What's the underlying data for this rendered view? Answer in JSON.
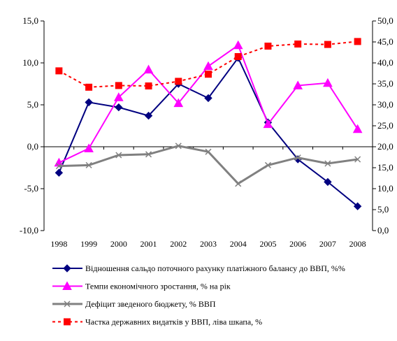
{
  "chart_data": {
    "type": "line",
    "title": "",
    "xlabel": "",
    "ylabel": "",
    "categories": [
      "1998",
      "1999",
      "2000",
      "2001",
      "2002",
      "2003",
      "2004",
      "2005",
      "2006",
      "2007",
      "2008"
    ],
    "y_left": {
      "min": -10,
      "max": 15,
      "step": 5,
      "tick_labels": [
        "-10,0",
        "-5,0",
        "0,0",
        "5,0",
        "10,0",
        "15,0"
      ]
    },
    "y_right": {
      "min": 0,
      "max": 50,
      "step": 5,
      "tick_labels": [
        "0,0",
        "5,0",
        "10,0",
        "15,0",
        "20,0",
        "25,0",
        "30,0",
        "35,0",
        "40,0",
        "45,0",
        "50,0"
      ]
    },
    "grid": false,
    "legend_position": "bottom",
    "series": [
      {
        "name": "Відношення сальдо поточного рахунку платіжного балансу до ВВП, %%",
        "axis": "left",
        "color": "#000080",
        "marker": "diamond",
        "line_style": "solid",
        "values": [
          -3.1,
          5.3,
          4.7,
          3.7,
          7.5,
          5.8,
          10.6,
          2.9,
          -1.5,
          -4.2,
          -7.1
        ]
      },
      {
        "name": "Темпи економічного зростання, % на рік",
        "axis": "left",
        "color": "#ff00ff",
        "marker": "triangle",
        "line_style": "solid",
        "values": [
          -1.9,
          -0.2,
          5.9,
          9.2,
          5.2,
          9.6,
          12.1,
          2.7,
          7.3,
          7.6,
          2.1
        ]
      },
      {
        "name": "Дефіцит зведеного бюджету, % ВВП",
        "axis": "left",
        "color": "#808080",
        "marker": "x",
        "line_style": "solid",
        "values": [
          -2.3,
          -2.2,
          -1.0,
          -0.9,
          0.1,
          -0.6,
          -4.4,
          -2.2,
          -1.3,
          -2.0,
          -1.5
        ]
      },
      {
        "name": "Частка державних видатків у ВВП, ліва шкапа, %",
        "axis": "right",
        "color": "#ff0000",
        "marker": "square",
        "line_style": "dashed",
        "values": [
          38.1,
          34.2,
          34.6,
          34.5,
          35.6,
          37.3,
          41.5,
          44.0,
          44.5,
          44.4,
          45.1
        ]
      }
    ]
  }
}
